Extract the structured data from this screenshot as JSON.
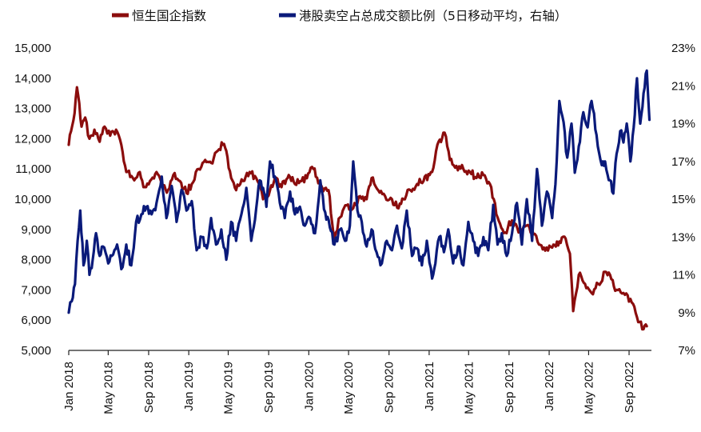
{
  "chart_data": {
    "type": "line",
    "title": "",
    "legend_position": "top",
    "grid": false,
    "x_ticks": [
      "Jan 2018",
      "May 2018",
      "Sep 2018",
      "Jan 2019",
      "May 2019",
      "Sep 2019",
      "Jan 2020",
      "May 2020",
      "Sep 2020",
      "Jan 2021",
      "May 2021",
      "Sep 2021",
      "Jan 2022",
      "May 2022",
      "Sep 2022"
    ],
    "y_left": {
      "range": [
        5000,
        15000
      ],
      "ticks": [
        "15,000",
        "14,000",
        "13,000",
        "12,000",
        "11,000",
        "10,000",
        "9,000",
        "8,000",
        "7,000",
        "6,000",
        "5,000"
      ]
    },
    "y_right": {
      "range": [
        7,
        23
      ],
      "ticks": [
        "23%",
        "21%",
        "19%",
        "17%",
        "15%",
        "13%",
        "11%",
        "9%",
        "7%"
      ]
    },
    "series": [
      {
        "name": "恒生国企指数",
        "axis": "left",
        "color": "#8B0D0D",
        "points": [
          [
            "2018-01-01",
            11800
          ],
          [
            "2018-01-15",
            12600
          ],
          [
            "2018-01-26",
            13700
          ],
          [
            "2018-02-09",
            12400
          ],
          [
            "2018-02-20",
            12700
          ],
          [
            "2018-03-05",
            12000
          ],
          [
            "2018-03-20",
            12300
          ],
          [
            "2018-04-05",
            11900
          ],
          [
            "2018-04-20",
            12400
          ],
          [
            "2018-05-07",
            12100
          ],
          [
            "2018-05-25",
            12300
          ],
          [
            "2018-06-10",
            11800
          ],
          [
            "2018-06-25",
            10900
          ],
          [
            "2018-07-15",
            10700
          ],
          [
            "2018-08-05",
            10900
          ],
          [
            "2018-08-20",
            10400
          ],
          [
            "2018-09-05",
            10600
          ],
          [
            "2018-09-25",
            10900
          ],
          [
            "2018-10-11",
            10500
          ],
          [
            "2018-10-30",
            10300
          ],
          [
            "2018-11-15",
            10800
          ],
          [
            "2018-12-05",
            10600
          ],
          [
            "2018-12-25",
            10200
          ],
          [
            "2019-01-10",
            10500
          ],
          [
            "2019-01-31",
            11000
          ],
          [
            "2019-02-20",
            11300
          ],
          [
            "2019-03-10",
            11200
          ],
          [
            "2019-03-30",
            11600
          ],
          [
            "2019-04-15",
            11800
          ],
          [
            "2019-04-25",
            11600
          ],
          [
            "2019-05-10",
            10700
          ],
          [
            "2019-05-25",
            10300
          ],
          [
            "2019-06-15",
            10600
          ],
          [
            "2019-07-05",
            10900
          ],
          [
            "2019-07-25",
            10700
          ],
          [
            "2019-08-15",
            10000
          ],
          [
            "2019-09-05",
            10300
          ],
          [
            "2019-09-20",
            10700
          ],
          [
            "2019-10-10",
            10400
          ],
          [
            "2019-11-01",
            10800
          ],
          [
            "2019-11-20",
            10500
          ],
          [
            "2019-12-10",
            10600
          ],
          [
            "2020-01-15",
            11000
          ],
          [
            "2020-02-10",
            10400
          ],
          [
            "2020-03-01",
            10300
          ],
          [
            "2020-03-19",
            8700
          ],
          [
            "2020-04-05",
            9400
          ],
          [
            "2020-04-25",
            9800
          ],
          [
            "2020-05-15",
            9700
          ],
          [
            "2020-06-05",
            10100
          ],
          [
            "2020-06-25",
            10000
          ],
          [
            "2020-07-10",
            10700
          ],
          [
            "2020-07-30",
            10300
          ],
          [
            "2020-08-20",
            10100
          ],
          [
            "2020-09-10",
            10000
          ],
          [
            "2020-09-30",
            9700
          ],
          [
            "2020-10-15",
            10000
          ],
          [
            "2020-11-05",
            10300
          ],
          [
            "2020-11-25",
            10500
          ],
          [
            "2020-12-15",
            10600
          ],
          [
            "2021-01-10",
            10900
          ],
          [
            "2021-01-26",
            11800
          ],
          [
            "2021-02-17",
            12200
          ],
          [
            "2021-03-05",
            11300
          ],
          [
            "2021-03-25",
            11100
          ],
          [
            "2021-04-15",
            11000
          ],
          [
            "2021-05-05",
            10900
          ],
          [
            "2021-05-25",
            10700
          ],
          [
            "2021-06-15",
            10800
          ],
          [
            "2021-07-05",
            10500
          ],
          [
            "2021-07-28",
            9400
          ],
          [
            "2021-08-20",
            8900
          ],
          [
            "2021-09-10",
            9300
          ],
          [
            "2021-09-30",
            8900
          ],
          [
            "2021-10-20",
            9100
          ],
          [
            "2021-11-10",
            9000
          ],
          [
            "2021-12-01",
            8500
          ],
          [
            "2021-12-20",
            8300
          ],
          [
            "2022-01-10",
            8400
          ],
          [
            "2022-02-01",
            8600
          ],
          [
            "2022-02-20",
            8700
          ],
          [
            "2022-03-05",
            8200
          ],
          [
            "2022-03-15",
            6300
          ],
          [
            "2022-04-01",
            7500
          ],
          [
            "2022-04-20",
            7200
          ],
          [
            "2022-05-10",
            6900
          ],
          [
            "2022-05-30",
            7200
          ],
          [
            "2022-06-20",
            7600
          ],
          [
            "2022-07-05",
            7500
          ],
          [
            "2022-07-25",
            7000
          ],
          [
            "2022-08-15",
            6900
          ],
          [
            "2022-09-05",
            6700
          ],
          [
            "2022-09-25",
            6100
          ],
          [
            "2022-10-15",
            5700
          ],
          [
            "2022-10-25",
            5800
          ]
        ]
      },
      {
        "name": "港股卖空占总成交额比例（5日移动平均，右轴）",
        "axis": "right",
        "color": "#0A1A7A",
        "points": [
          [
            "2018-01-01",
            9.0
          ],
          [
            "2018-01-10",
            9.6
          ],
          [
            "2018-01-20",
            10.5
          ],
          [
            "2018-01-28",
            12.8
          ],
          [
            "2018-02-05",
            14.4
          ],
          [
            "2018-02-15",
            11.5
          ],
          [
            "2018-02-25",
            12.8
          ],
          [
            "2018-03-05",
            11.0
          ],
          [
            "2018-03-15",
            11.8
          ],
          [
            "2018-03-25",
            13.2
          ],
          [
            "2018-04-05",
            12.0
          ],
          [
            "2018-04-15",
            12.5
          ],
          [
            "2018-05-01",
            11.6
          ],
          [
            "2018-05-12",
            12.0
          ],
          [
            "2018-05-28",
            12.6
          ],
          [
            "2018-06-10",
            11.3
          ],
          [
            "2018-06-25",
            12.6
          ],
          [
            "2018-07-10",
            11.5
          ],
          [
            "2018-07-25",
            13.8
          ],
          [
            "2018-08-10",
            14.2
          ],
          [
            "2018-08-25",
            14.6
          ],
          [
            "2018-09-10",
            14.2
          ],
          [
            "2018-09-25",
            14.8
          ],
          [
            "2018-10-11",
            16.2
          ],
          [
            "2018-10-25",
            14.0
          ],
          [
            "2018-11-10",
            15.7
          ],
          [
            "2018-11-25",
            13.8
          ],
          [
            "2018-12-10",
            15.5
          ],
          [
            "2018-12-25",
            14.4
          ],
          [
            "2019-01-10",
            14.9
          ],
          [
            "2019-01-25",
            12.3
          ],
          [
            "2019-02-10",
            13.0
          ],
          [
            "2019-02-25",
            12.4
          ],
          [
            "2019-03-10",
            14.0
          ],
          [
            "2019-03-25",
            12.6
          ],
          [
            "2019-04-10",
            13.4
          ],
          [
            "2019-04-25",
            11.8
          ],
          [
            "2019-05-10",
            13.8
          ],
          [
            "2019-05-25",
            12.8
          ],
          [
            "2019-06-10",
            14.2
          ],
          [
            "2019-06-25",
            15.6
          ],
          [
            "2019-07-10",
            12.8
          ],
          [
            "2019-07-25",
            14.5
          ],
          [
            "2019-08-05",
            16.0
          ],
          [
            "2019-08-15",
            15.6
          ],
          [
            "2019-08-25",
            14.6
          ],
          [
            "2019-09-05",
            17.0
          ],
          [
            "2019-09-20",
            16.2
          ],
          [
            "2019-10-05",
            14.8
          ],
          [
            "2019-10-20",
            14.0
          ],
          [
            "2019-11-05",
            15.4
          ],
          [
            "2019-11-20",
            14.2
          ],
          [
            "2019-12-05",
            14.6
          ],
          [
            "2019-12-20",
            13.6
          ],
          [
            "2020-01-05",
            14.0
          ],
          [
            "2020-01-20",
            13.2
          ],
          [
            "2020-02-05",
            16.0
          ],
          [
            "2020-02-20",
            14.3
          ],
          [
            "2020-03-05",
            13.5
          ],
          [
            "2020-03-19",
            12.6
          ],
          [
            "2020-04-05",
            13.4
          ],
          [
            "2020-04-20",
            12.8
          ],
          [
            "2020-05-05",
            13.6
          ],
          [
            "2020-05-15",
            17.0
          ],
          [
            "2020-05-28",
            14.4
          ],
          [
            "2020-06-10",
            13.8
          ],
          [
            "2020-06-25",
            12.5
          ],
          [
            "2020-07-10",
            13.4
          ],
          [
            "2020-07-25",
            12.2
          ],
          [
            "2020-08-10",
            11.6
          ],
          [
            "2020-08-25",
            12.8
          ],
          [
            "2020-09-10",
            12.3
          ],
          [
            "2020-09-25",
            13.6
          ],
          [
            "2020-10-10",
            12.4
          ],
          [
            "2020-10-25",
            14.4
          ],
          [
            "2020-11-10",
            12.0
          ],
          [
            "2020-11-25",
            12.4
          ],
          [
            "2020-12-10",
            11.5
          ],
          [
            "2020-12-25",
            12.8
          ],
          [
            "2021-01-10",
            10.8
          ],
          [
            "2021-01-20",
            11.6
          ],
          [
            "2021-02-01",
            13.0
          ],
          [
            "2021-02-15",
            12.2
          ],
          [
            "2021-02-28",
            13.4
          ],
          [
            "2021-03-15",
            11.6
          ],
          [
            "2021-03-30",
            12.5
          ],
          [
            "2021-04-15",
            11.5
          ],
          [
            "2021-04-30",
            13.8
          ],
          [
            "2021-05-15",
            12.8
          ],
          [
            "2021-05-30",
            12.0
          ],
          [
            "2021-06-15",
            13.0
          ],
          [
            "2021-06-30",
            12.3
          ],
          [
            "2021-07-15",
            14.7
          ],
          [
            "2021-07-28",
            12.6
          ],
          [
            "2021-08-10",
            13.2
          ],
          [
            "2021-08-25",
            12.0
          ],
          [
            "2021-09-10",
            13.2
          ],
          [
            "2021-09-25",
            14.8
          ],
          [
            "2021-10-10",
            12.6
          ],
          [
            "2021-10-25",
            15.0
          ],
          [
            "2021-11-10",
            12.8
          ],
          [
            "2021-11-25",
            16.6
          ],
          [
            "2021-12-10",
            13.6
          ],
          [
            "2021-12-25",
            15.4
          ],
          [
            "2022-01-10",
            14.0
          ],
          [
            "2022-01-20",
            15.8
          ],
          [
            "2022-02-01",
            20.2
          ],
          [
            "2022-02-10",
            19.4
          ],
          [
            "2022-02-25",
            17.2
          ],
          [
            "2022-03-10",
            19.0
          ],
          [
            "2022-03-20",
            16.4
          ],
          [
            "2022-04-01",
            17.8
          ],
          [
            "2022-04-15",
            19.6
          ],
          [
            "2022-04-28",
            18.8
          ],
          [
            "2022-05-10",
            20.2
          ],
          [
            "2022-05-25",
            18.4
          ],
          [
            "2022-06-10",
            16.8
          ],
          [
            "2022-06-20",
            17.0
          ],
          [
            "2022-07-05",
            16.0
          ],
          [
            "2022-07-15",
            15.3
          ],
          [
            "2022-07-25",
            17.4
          ],
          [
            "2022-08-05",
            18.6
          ],
          [
            "2022-08-15",
            18.0
          ],
          [
            "2022-08-25",
            19.0
          ],
          [
            "2022-09-05",
            17.0
          ],
          [
            "2022-09-15",
            18.8
          ],
          [
            "2022-09-25",
            21.4
          ],
          [
            "2022-10-05",
            19.0
          ],
          [
            "2022-10-15",
            20.6
          ],
          [
            "2022-10-25",
            21.8
          ],
          [
            "2022-11-02",
            19.2
          ]
        ]
      }
    ]
  }
}
